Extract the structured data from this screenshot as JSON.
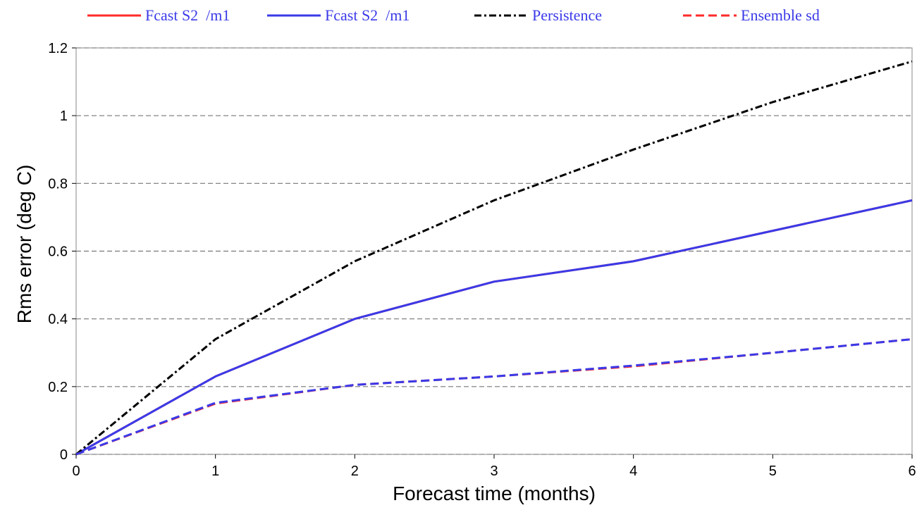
{
  "chart_data": {
    "type": "line",
    "title": "",
    "xlabel": "Forecast time (months)",
    "ylabel": "Rms error (deg C)",
    "xlim": [
      0,
      6
    ],
    "ylim": [
      0,
      1.2
    ],
    "x_ticks": [
      0,
      1,
      2,
      3,
      4,
      5,
      6
    ],
    "y_ticks": [
      0,
      0.2,
      0.4,
      0.6,
      0.8,
      1,
      1.2
    ],
    "x_tick_labels": [
      "0",
      "1",
      "2",
      "3",
      "4",
      "5",
      "6"
    ],
    "y_tick_labels": [
      "0",
      "0.2",
      "0.4",
      "0.6",
      "0.8",
      "1",
      "1.2"
    ],
    "grid": "horizontal dashed",
    "legend_position": "top",
    "x": [
      0,
      1,
      2,
      3,
      4,
      5,
      6
    ],
    "series": [
      {
        "name": "Fcast S2  /m1",
        "color": "#ff2a2a",
        "style": "solid",
        "values": [
          0,
          0.23,
          0.4,
          0.51,
          0.57,
          0.66,
          0.75
        ]
      },
      {
        "name": "Fcast S2  /m1",
        "color": "#3a3ae8",
        "style": "solid",
        "values": [
          0,
          0.23,
          0.4,
          0.51,
          0.57,
          0.66,
          0.75
        ]
      },
      {
        "name": "Persistence",
        "color": "#000000",
        "style": "dashdot",
        "values": [
          0,
          0.34,
          0.57,
          0.75,
          0.9,
          1.04,
          1.16
        ]
      },
      {
        "name": "Ensemble sd",
        "color": "#ff2a2a",
        "style": "dashed",
        "values": [
          0,
          0.15,
          0.205,
          0.23,
          0.26,
          0.3,
          0.34
        ]
      },
      {
        "name": "",
        "color": "#3a3ae8",
        "style": "dashed",
        "values": [
          0,
          0.152,
          0.205,
          0.23,
          0.262,
          0.3,
          0.34
        ]
      }
    ]
  }
}
